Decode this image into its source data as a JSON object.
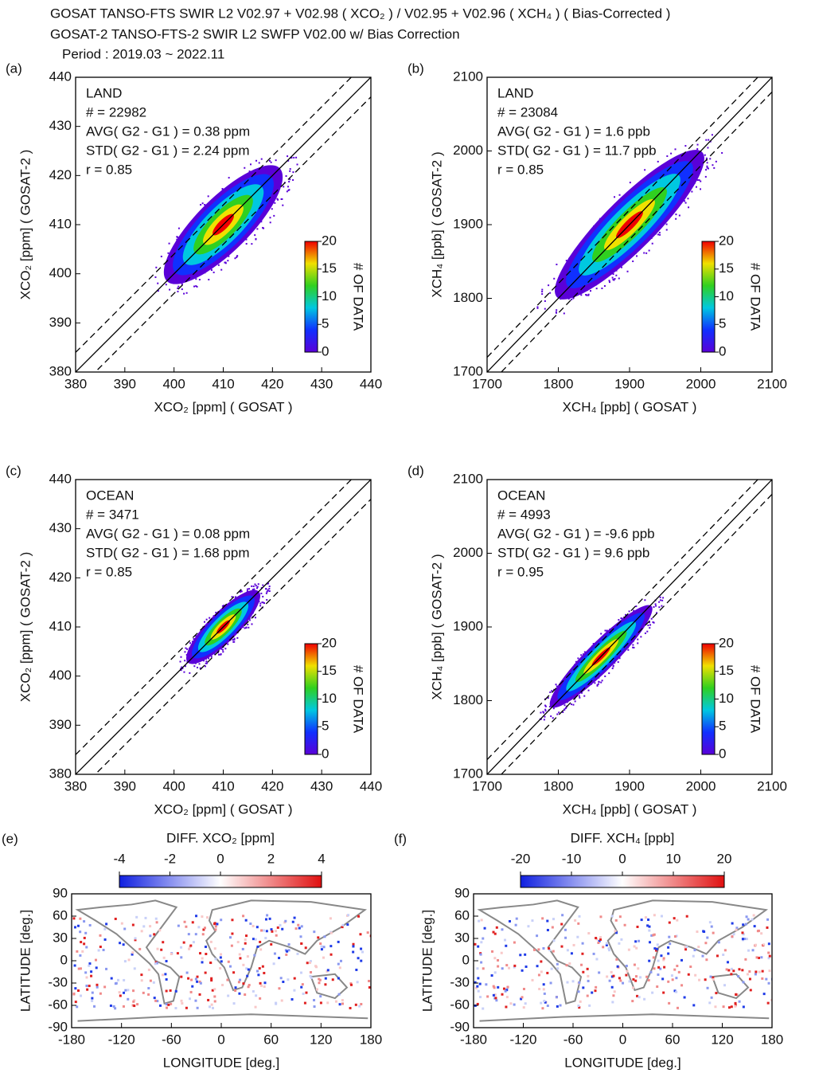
{
  "header": {
    "lines": [
      "GOSAT TANSO-FTS SWIR L2 V02.97 + V02.98 ( XCO₂ ) / V02.95 + V02.96 ( XCH₄ ) ( Bias-Corrected )",
      "GOSAT-2 TANSO-FTS-2 SWIR L2 SWFP V02.00 w/ Bias Correction",
      "Period : 2019.03 ~ 2022.11"
    ]
  },
  "chart_data": [
    {
      "type": "scatter",
      "panel_label": "(a)",
      "xlabel": "XCO₂ [ppm] ( GOSAT )",
      "ylabel": "XCO₂ [ppm] ( GOSAT-2 )",
      "xlim": [
        380,
        440
      ],
      "ylim": [
        380,
        440
      ],
      "xticks": [
        380,
        390,
        400,
        410,
        420,
        430,
        440
      ],
      "yticks": [
        380,
        390,
        400,
        410,
        420,
        430,
        440
      ],
      "diagonal_offsets": [
        -4,
        0,
        4
      ],
      "annotations": [
        "LAND",
        "# = 22982",
        "AVG( G2 - G1 ) = 0.38 ppm",
        "STD( G2 - G1 ) = 2.24 ppm",
        "r = 0.85"
      ],
      "colorbar": {
        "label": "# OF DATA",
        "lim": [
          0,
          20
        ],
        "ticks": [
          0,
          5,
          10,
          15,
          20
        ]
      }
    },
    {
      "type": "scatter",
      "panel_label": "(b)",
      "xlabel": "XCH₄ [ppb] ( GOSAT )",
      "ylabel": "XCH₄ [ppb] ( GOSAT-2 )",
      "xlim": [
        1700,
        2100
      ],
      "ylim": [
        1700,
        2100
      ],
      "xticks": [
        1700,
        1800,
        1900,
        2000,
        2100
      ],
      "yticks": [
        1700,
        1800,
        1900,
        2000,
        2100
      ],
      "diagonal_offsets": [
        -20,
        0,
        20
      ],
      "annotations": [
        "LAND",
        "# = 23084",
        "AVG( G2 - G1 ) = 1.6 ppb",
        "STD( G2 - G1 ) = 11.7 ppb",
        "r = 0.85"
      ],
      "colorbar": {
        "label": "# OF DATA",
        "lim": [
          0,
          20
        ],
        "ticks": [
          0,
          5,
          10,
          15,
          20
        ]
      }
    },
    {
      "type": "scatter",
      "panel_label": "(c)",
      "xlabel": "XCO₂ [ppm] ( GOSAT )",
      "ylabel": "XCO₂ [ppm] ( GOSAT-2 )",
      "xlim": [
        380,
        440
      ],
      "ylim": [
        380,
        440
      ],
      "xticks": [
        380,
        390,
        400,
        410,
        420,
        430,
        440
      ],
      "yticks": [
        380,
        390,
        400,
        410,
        420,
        430,
        440
      ],
      "diagonal_offsets": [
        -4,
        0,
        4
      ],
      "annotations": [
        "OCEAN",
        "# = 3471",
        "AVG( G2 - G1 ) = 0.08 ppm",
        "STD( G2 - G1 ) = 1.68 ppm",
        "r = 0.85"
      ],
      "colorbar": {
        "label": "# OF DATA",
        "lim": [
          0,
          20
        ],
        "ticks": [
          0,
          5,
          10,
          15,
          20
        ]
      }
    },
    {
      "type": "scatter",
      "panel_label": "(d)",
      "xlabel": "XCH₄ [ppb] ( GOSAT )",
      "ylabel": "XCH₄ [ppb] ( GOSAT-2 )",
      "xlim": [
        1700,
        2100
      ],
      "ylim": [
        1700,
        2100
      ],
      "xticks": [
        1700,
        1800,
        1900,
        2000,
        2100
      ],
      "yticks": [
        1700,
        1800,
        1900,
        2000,
        2100
      ],
      "diagonal_offsets": [
        -20,
        0,
        20
      ],
      "annotations": [
        "OCEAN",
        "# = 4993",
        "AVG( G2 - G1 ) = -9.6 ppb",
        "STD( G2 - G1 ) = 9.6 ppb",
        "r = 0.95"
      ],
      "colorbar": {
        "label": "# OF DATA",
        "lim": [
          0,
          20
        ],
        "ticks": [
          0,
          5,
          10,
          15,
          20
        ]
      }
    },
    {
      "type": "map",
      "panel_label": "(e)",
      "xlabel": "LONGITUDE [deg.]",
      "ylabel": "LATITUDE [deg.]",
      "xlim": [
        -180,
        180
      ],
      "ylim": [
        -90,
        90
      ],
      "xticks": [
        -180,
        -120,
        -60,
        0,
        60,
        120,
        180
      ],
      "yticks": [
        -90,
        -60,
        -30,
        0,
        30,
        60,
        90
      ],
      "colorbar": {
        "label": "DIFF. XCO₂ [ppm]",
        "lim": [
          -4,
          4
        ],
        "ticks": [
          -4,
          -2,
          0,
          2,
          4
        ]
      }
    },
    {
      "type": "map",
      "panel_label": "(f)",
      "xlabel": "LONGITUDE [deg.]",
      "ylabel": "LATITUDE [deg.]",
      "xlim": [
        -180,
        180
      ],
      "ylim": [
        -90,
        90
      ],
      "xticks": [
        -180,
        -120,
        -60,
        0,
        60,
        120,
        180
      ],
      "yticks": [
        -90,
        -60,
        -30,
        0,
        30,
        60,
        90
      ],
      "colorbar": {
        "label": "DIFF. XCH₄ [ppb]",
        "lim": [
          -20,
          20
        ],
        "ticks": [
          -20,
          -10,
          0,
          10,
          20
        ]
      }
    }
  ]
}
